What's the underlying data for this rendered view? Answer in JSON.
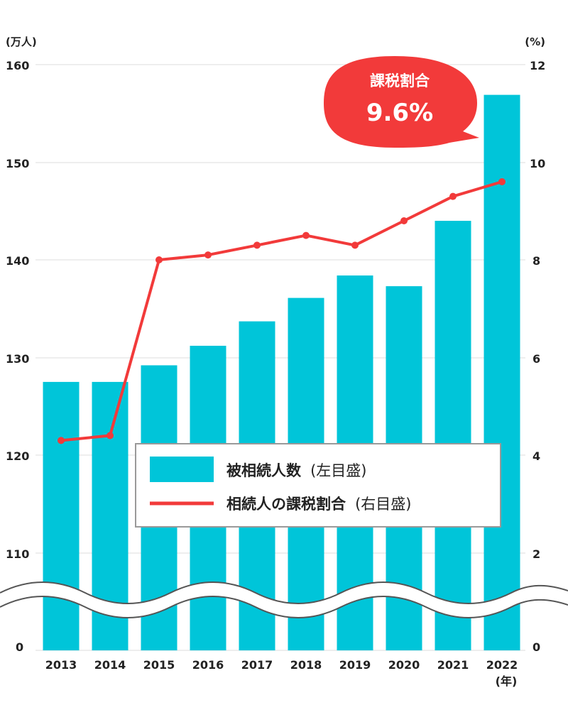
{
  "chart_data": {
    "type": "bar+line",
    "categories": [
      "2013",
      "2014",
      "2015",
      "2016",
      "2017",
      "2018",
      "2019",
      "2020",
      "2021",
      "2022"
    ],
    "x_unit": "(年)",
    "series": [
      {
        "name": "被相続人数",
        "axis_note": "(左目盛)",
        "type": "bar",
        "axis": "left",
        "values": [
          127.5,
          127.5,
          129.2,
          131.2,
          133.7,
          136.1,
          138.4,
          137.3,
          144.0,
          156.9
        ]
      },
      {
        "name": "相続人の課税割合",
        "axis_note": "(右目盛)",
        "type": "line",
        "axis": "right",
        "values": [
          4.3,
          4.4,
          8.0,
          8.1,
          8.3,
          8.5,
          8.3,
          8.8,
          9.3,
          9.6
        ]
      }
    ],
    "left_axis": {
      "unit": "(万人)",
      "ticks": [
        "160",
        "150",
        "140",
        "130",
        "120",
        "110",
        "0"
      ],
      "range": [
        104,
        160
      ],
      "axis_break": true
    },
    "right_axis": {
      "unit": "(%)",
      "ticks": [
        "12",
        "10",
        "8",
        "6",
        "4",
        "2",
        "0"
      ],
      "range": [
        0,
        12
      ]
    },
    "callout": {
      "title": "課税割合",
      "value": "9.6%"
    },
    "colors": {
      "bar": "#00c5d9",
      "line": "#f23a3a",
      "grid": "#dddddd",
      "callout": "#f23a3a"
    }
  }
}
